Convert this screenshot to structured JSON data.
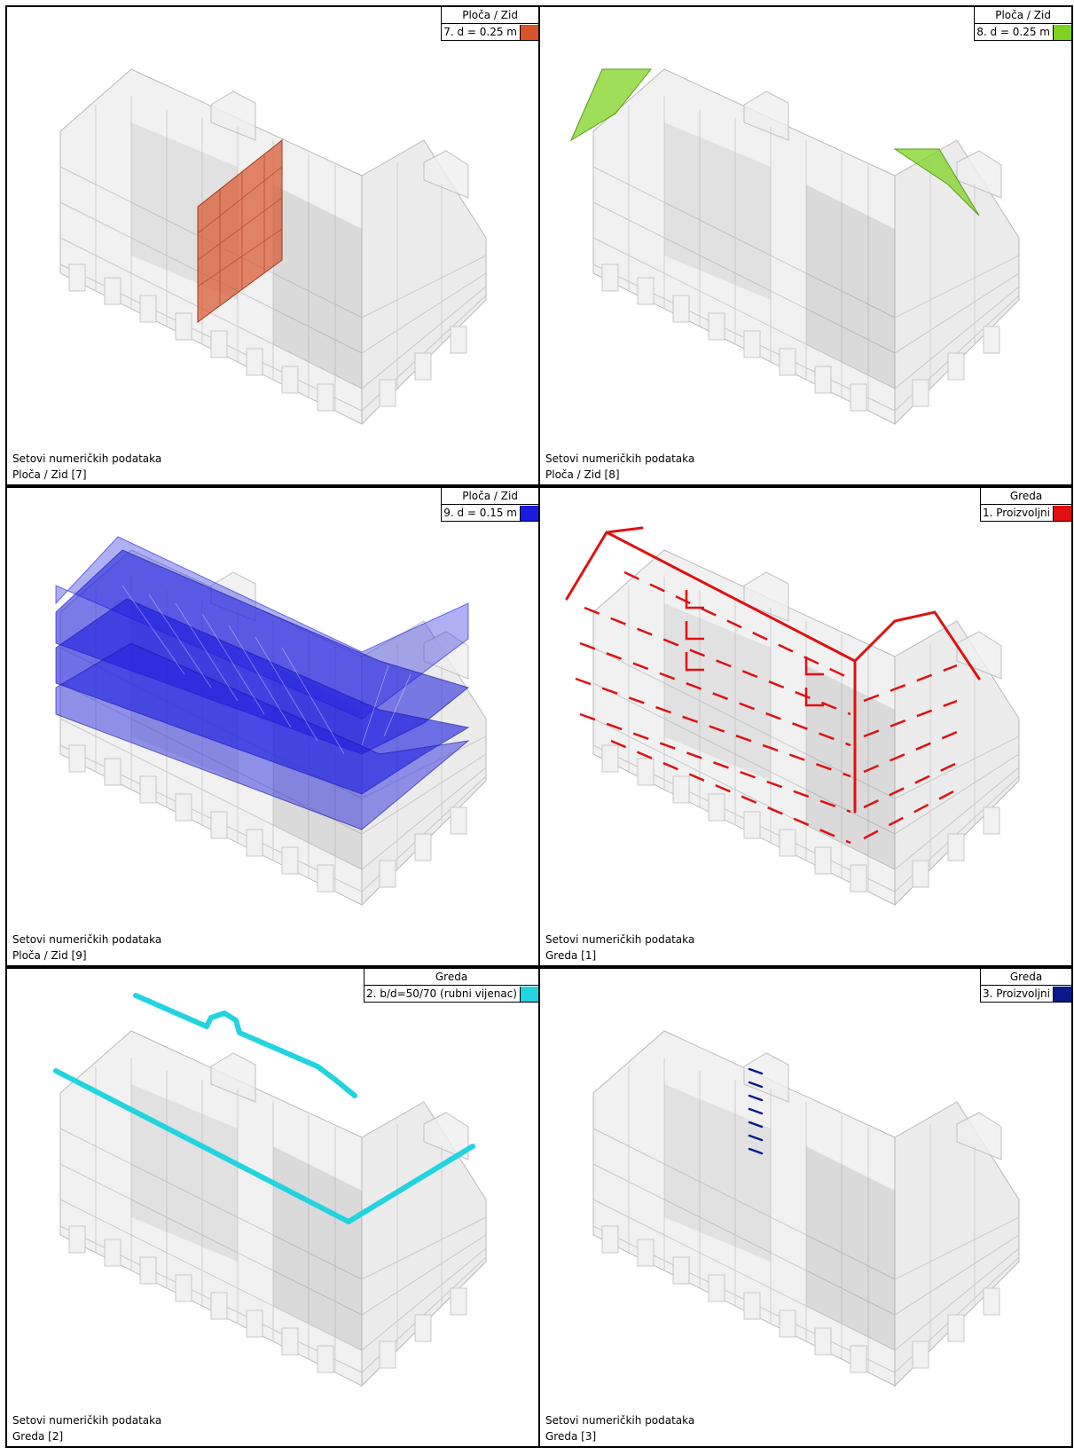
{
  "panels": [
    {
      "id": "7",
      "legend_title": "Ploča / Zid",
      "legend_item": "7. d = 0.25 m",
      "color": "#d9532b",
      "caption_line1": "Setovi numeričkih podataka",
      "caption_line2": "Ploča / Zid [7]"
    },
    {
      "id": "8",
      "legend_title": "Ploča / Zid",
      "legend_item": "8. d = 0.25 m",
      "color": "#7ed321",
      "caption_line1": "Setovi numeričkih podataka",
      "caption_line2": "Ploča / Zid [8]"
    },
    {
      "id": "9",
      "legend_title": "Ploča / Zid",
      "legend_item": "9. d = 0.15 m",
      "color": "#1a1adf",
      "caption_line1": "Setovi numeričkih podataka",
      "caption_line2": "Ploča / Zid [9]"
    },
    {
      "id": "g1",
      "legend_title": "Greda",
      "legend_item": "1. Proizvoljni",
      "color": "#e01010",
      "caption_line1": "Setovi numeričkih podataka",
      "caption_line2": "Greda [1]"
    },
    {
      "id": "g2",
      "legend_title": "Greda",
      "legend_item": "2. b/d=50/70 (rubni vijenac)",
      "color": "#22d3e0",
      "caption_line1": "Setovi numeričkih podataka",
      "caption_line2": "Greda [2]"
    },
    {
      "id": "g3",
      "legend_title": "Greda",
      "legend_item": "3. Proizvoljni",
      "color": "#0a1a8a",
      "caption_line1": "Setovi numeričkih podataka",
      "caption_line2": "Greda [3]"
    }
  ]
}
